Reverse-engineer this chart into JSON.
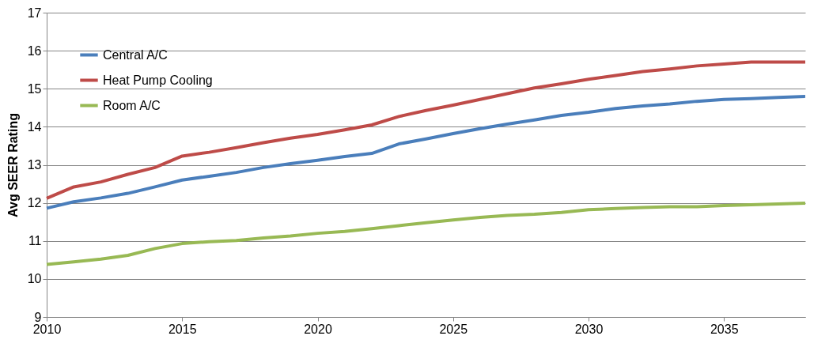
{
  "chart_data": {
    "type": "line",
    "ylabel": "Avg SEER Rating",
    "x": [
      2010,
      2011,
      2012,
      2013,
      2014,
      2015,
      2016,
      2017,
      2018,
      2019,
      2020,
      2021,
      2022,
      2023,
      2024,
      2025,
      2026,
      2027,
      2028,
      2029,
      2030,
      2031,
      2032,
      2033,
      2034,
      2035,
      2036,
      2037,
      2038
    ],
    "series": [
      {
        "name": "Central A/C",
        "color": "#4a7ebb",
        "values": [
          11.86,
          12.03,
          12.13,
          12.25,
          12.42,
          12.6,
          12.7,
          12.8,
          12.93,
          13.03,
          13.12,
          13.22,
          13.3,
          13.55,
          13.68,
          13.82,
          13.95,
          14.07,
          14.18,
          14.3,
          14.38,
          14.48,
          14.55,
          14.6,
          14.67,
          14.72,
          14.74,
          14.77,
          14.8
        ]
      },
      {
        "name": "Heat Pump Cooling",
        "color": "#be4b48",
        "values": [
          12.12,
          12.42,
          12.55,
          12.75,
          12.93,
          13.23,
          13.33,
          13.45,
          13.58,
          13.7,
          13.8,
          13.92,
          14.05,
          14.27,
          14.43,
          14.57,
          14.72,
          14.87,
          15.02,
          15.13,
          15.25,
          15.35,
          15.45,
          15.52,
          15.6,
          15.65,
          15.7,
          15.7,
          15.7
        ]
      },
      {
        "name": "Room A/C",
        "color": "#98b954",
        "values": [
          10.38,
          10.45,
          10.52,
          10.62,
          10.8,
          10.93,
          10.98,
          11.01,
          11.08,
          11.13,
          11.2,
          11.25,
          11.32,
          11.4,
          11.48,
          11.55,
          11.62,
          11.67,
          11.7,
          11.75,
          11.82,
          11.85,
          11.88,
          11.9,
          11.9,
          11.93,
          11.95,
          11.97,
          11.99
        ]
      }
    ],
    "xlim": [
      2010,
      2038
    ],
    "xticks": [
      2010,
      2015,
      2020,
      2025,
      2030,
      2035
    ],
    "ylim": [
      9,
      17
    ],
    "yticks": [
      9,
      10,
      11,
      12,
      13,
      14,
      15,
      16,
      17
    ],
    "grid": "y",
    "legend": "top left",
    "marker": "none",
    "line_style": "solid"
  }
}
